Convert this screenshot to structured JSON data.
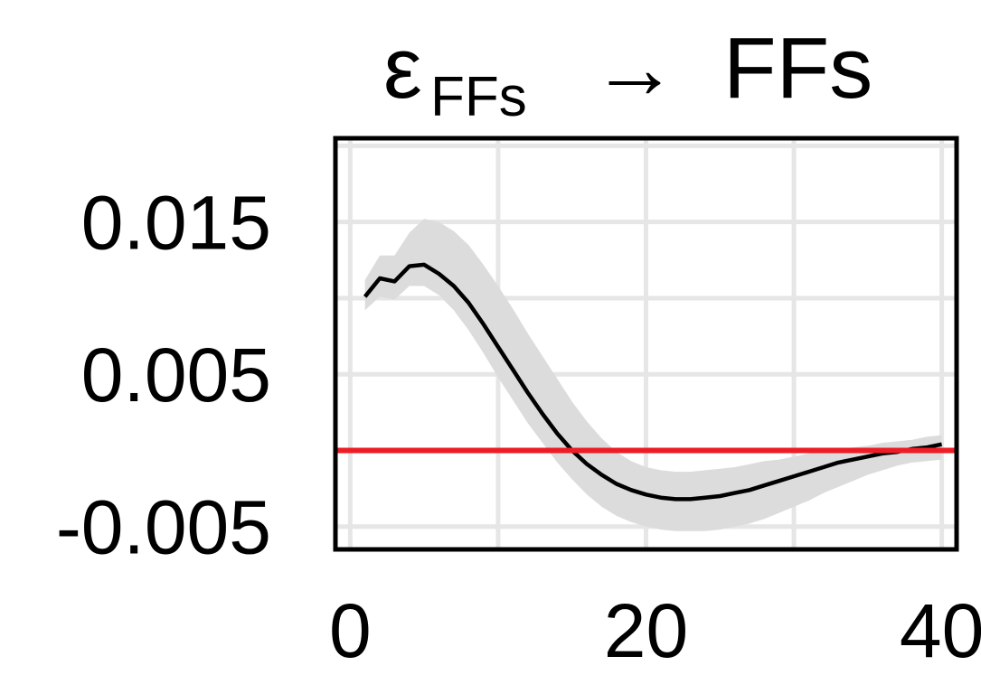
{
  "chart_data": {
    "type": "line",
    "title": {
      "symbol": "ε",
      "subscript": "FFs",
      "arrow": "→",
      "target": "FFs"
    },
    "xlabel": "",
    "ylabel": "",
    "xlim": [
      -1,
      41
    ],
    "ylim": [
      -0.0065,
      0.0205
    ],
    "x_ticks": [
      0,
      20,
      40
    ],
    "x_tick_labels": [
      "0",
      "20",
      "40"
    ],
    "y_ticks": [
      -0.005,
      0.005,
      0.015
    ],
    "y_tick_labels": [
      "-0.005",
      "0.005",
      "0.015"
    ],
    "x_grid": [
      0,
      10,
      20,
      30,
      40
    ],
    "y_grid": [
      -0.005,
      0,
      0.005,
      0.01,
      0.015,
      0.02
    ],
    "grid": true,
    "reference_line": {
      "y": 0,
      "color": "#ee1c25"
    },
    "colors": {
      "line": "#000000",
      "band": "#dcdcdc",
      "grid": "#e6e6e6",
      "frame": "#000000"
    },
    "series": [
      {
        "x": [
          1,
          2,
          3,
          4,
          5,
          6,
          7,
          8,
          9,
          10,
          11,
          12,
          13,
          14,
          15,
          16,
          17,
          18,
          19,
          20,
          21,
          22,
          23,
          24,
          25,
          26,
          27,
          28,
          29,
          30,
          31,
          32,
          33,
          34,
          35,
          36,
          37,
          38,
          39,
          40
        ],
        "y": [
          0.0101,
          0.0113,
          0.0111,
          0.0121,
          0.0122,
          0.0116,
          0.0108,
          0.0097,
          0.0083,
          0.0068,
          0.0053,
          0.0038,
          0.0024,
          0.0011,
          0.0,
          -0.0009,
          -0.0016,
          -0.0022,
          -0.0026,
          -0.0029,
          -0.0031,
          -0.0032,
          -0.0032,
          -0.0031,
          -0.003,
          -0.0028,
          -0.0026,
          -0.0023,
          -0.002,
          -0.0017,
          -0.0014,
          -0.0011,
          -0.0008,
          -0.0006,
          -0.0004,
          -0.0002,
          -0.0001,
          0.0001,
          0.0002,
          0.0004
        ],
        "lower": [
          0.0092,
          0.0101,
          0.0099,
          0.0108,
          0.0108,
          0.0102,
          0.0092,
          0.0079,
          0.0064,
          0.0048,
          0.0033,
          0.0018,
          0.0005,
          -0.0008,
          -0.0019,
          -0.0029,
          -0.0037,
          -0.0043,
          -0.0047,
          -0.005,
          -0.0052,
          -0.0053,
          -0.0053,
          -0.0053,
          -0.0052,
          -0.005,
          -0.0048,
          -0.0045,
          -0.0041,
          -0.0037,
          -0.0033,
          -0.0028,
          -0.0024,
          -0.002,
          -0.0016,
          -0.0013,
          -0.001,
          -0.0008,
          -0.0007,
          -0.0006
        ],
        "upper": [
          0.0112,
          0.0128,
          0.0128,
          0.0143,
          0.0152,
          0.015,
          0.0144,
          0.0135,
          0.0122,
          0.0108,
          0.0093,
          0.0077,
          0.0062,
          0.0047,
          0.0032,
          0.0019,
          0.0008,
          -0.0001,
          -0.0007,
          -0.0011,
          -0.0013,
          -0.0014,
          -0.0014,
          -0.0013,
          -0.0012,
          -0.0011,
          -0.0009,
          -0.0007,
          -0.0006,
          -0.0004,
          -0.0002,
          -0.0001,
          0.0001,
          0.0002,
          0.0003,
          0.0005,
          0.0006,
          0.0007,
          0.0009,
          0.001
        ]
      }
    ]
  }
}
